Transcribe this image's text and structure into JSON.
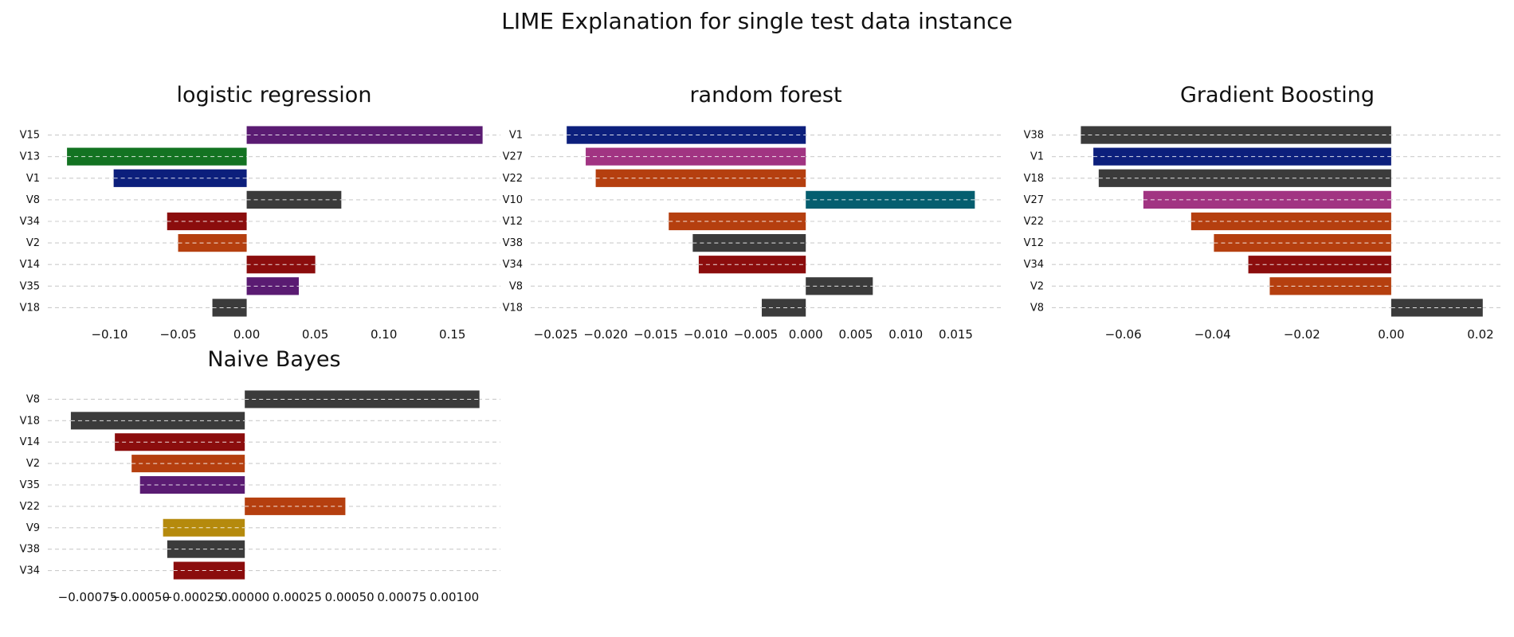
{
  "figure": {
    "title": "LIME Explanation for single test data instance"
  },
  "colors": {
    "dark_gray": "#3b3b3b",
    "navy": "#0c1f7c",
    "green": "#137322",
    "dark_red": "#8b0d0d",
    "orange": "#b53f0f",
    "purple": "#5a1b72",
    "magenta": "#a13482",
    "teal": "#055e6f",
    "mustard": "#b58a0d",
    "grid": "#cccccc"
  },
  "chart_data": [
    {
      "type": "bar",
      "orientation": "horizontal",
      "title": "logistic regression",
      "categories": [
        "V15",
        "V13",
        "V1",
        "V8",
        "V34",
        "V2",
        "V14",
        "V35",
        "V18"
      ],
      "values": [
        0.172,
        -0.131,
        -0.097,
        0.069,
        -0.058,
        -0.05,
        0.05,
        0.038,
        -0.025
      ],
      "bar_colors": [
        "purple",
        "green",
        "navy",
        "dark_gray",
        "dark_red",
        "orange",
        "dark_red",
        "purple",
        "dark_gray"
      ],
      "xlim": [
        -0.145,
        0.185
      ],
      "xticks": [
        -0.1,
        -0.05,
        0.0,
        0.05,
        0.1,
        0.15
      ],
      "xtick_labels": [
        "−0.10",
        "−0.05",
        "0.00",
        "0.05",
        "0.10",
        "0.15"
      ],
      "grid": "horizontal dashed"
    },
    {
      "type": "bar",
      "orientation": "horizontal",
      "title": "random forest",
      "categories": [
        "V1",
        "V27",
        "V22",
        "V10",
        "V12",
        "V38",
        "V34",
        "V8",
        "V18"
      ],
      "values": [
        -0.0239,
        -0.022,
        -0.021,
        0.0169,
        -0.0137,
        -0.0113,
        -0.0107,
        0.0067,
        -0.0044
      ],
      "bar_colors": [
        "navy",
        "magenta",
        "orange",
        "teal",
        "orange",
        "dark_gray",
        "dark_red",
        "dark_gray",
        "dark_gray"
      ],
      "xlim": [
        -0.0275,
        0.0195
      ],
      "xticks": [
        -0.025,
        -0.02,
        -0.015,
        -0.01,
        -0.005,
        0.0,
        0.005,
        0.01,
        0.015
      ],
      "xtick_labels": [
        "−0.025",
        "−0.020",
        "−0.015",
        "−0.010",
        "−0.005",
        "0.000",
        "0.005",
        "0.010",
        "0.015"
      ],
      "grid": "horizontal dashed"
    },
    {
      "type": "bar",
      "orientation": "horizontal",
      "title": "Gradient Boosting",
      "categories": [
        "V38",
        "V1",
        "V18",
        "V27",
        "V22",
        "V12",
        "V34",
        "V2",
        "V8"
      ],
      "values": [
        -0.0695,
        -0.0667,
        -0.0655,
        -0.0555,
        -0.0448,
        -0.0397,
        -0.032,
        -0.0272,
        0.0205
      ],
      "bar_colors": [
        "dark_gray",
        "navy",
        "dark_gray",
        "magenta",
        "orange",
        "orange",
        "dark_red",
        "orange",
        "dark_gray"
      ],
      "xlim": [
        -0.076,
        0.025
      ],
      "xticks": [
        -0.06,
        -0.04,
        -0.02,
        0.0,
        0.02
      ],
      "xtick_labels": [
        "−0.06",
        "−0.04",
        "−0.02",
        "0.00",
        "0.02"
      ],
      "grid": "horizontal dashed"
    },
    {
      "type": "bar",
      "orientation": "horizontal",
      "title": "Naive Bayes",
      "categories": [
        "V8",
        "V18",
        "V14",
        "V2",
        "V35",
        "V22",
        "V9",
        "V38",
        "V34"
      ],
      "values": [
        0.00112,
        -0.00083,
        -0.00062,
        -0.00054,
        -0.0005,
        0.00048,
        -0.00039,
        -0.00037,
        -0.00034
      ],
      "bar_colors": [
        "dark_gray",
        "dark_gray",
        "dark_red",
        "orange",
        "purple",
        "orange",
        "mustard",
        "dark_gray",
        "dark_red"
      ],
      "xlim": [
        -0.00094,
        0.00122
      ],
      "xticks": [
        -0.00075,
        -0.0005,
        -0.00025,
        0.0,
        0.00025,
        0.0005,
        0.00075,
        0.001
      ],
      "xtick_labels": [
        "−0.00075",
        "−0.00050",
        "−0.00025",
        "0.00000",
        "0.00025",
        "0.00050",
        "0.00075",
        "0.00100"
      ],
      "grid": "horizontal dashed"
    }
  ]
}
